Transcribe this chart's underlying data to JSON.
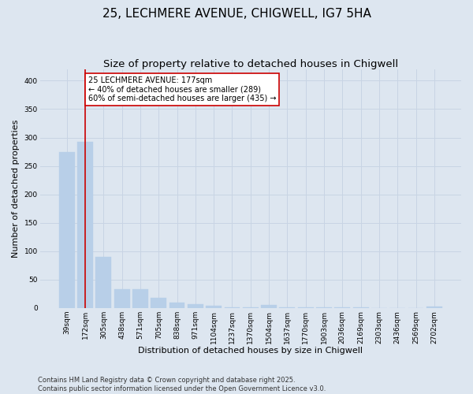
{
  "title_line1": "25, LECHMERE AVENUE, CHIGWELL, IG7 5HA",
  "title_line2": "Size of property relative to detached houses in Chigwell",
  "xlabel": "Distribution of detached houses by size in Chigwell",
  "ylabel": "Number of detached properties",
  "categories": [
    "39sqm",
    "172sqm",
    "305sqm",
    "438sqm",
    "571sqm",
    "705sqm",
    "838sqm",
    "971sqm",
    "1104sqm",
    "1237sqm",
    "1370sqm",
    "1504sqm",
    "1637sqm",
    "1770sqm",
    "1903sqm",
    "2036sqm",
    "2169sqm",
    "2303sqm",
    "2436sqm",
    "2569sqm",
    "2702sqm"
  ],
  "values": [
    275,
    293,
    90,
    33,
    33,
    18,
    10,
    7,
    4,
    1,
    1,
    5,
    1,
    1,
    1,
    1,
    1,
    0,
    0,
    0,
    3
  ],
  "bar_color": "#b8cfe8",
  "bar_edgecolor": "#b8cfe8",
  "vline_x": 1,
  "vline_color": "#cc0000",
  "annotation_text": "25 LECHMERE AVENUE: 177sqm\n← 40% of detached houses are smaller (289)\n60% of semi-detached houses are larger (435) →",
  "annotation_box_edgecolor": "#cc0000",
  "annotation_box_facecolor": "white",
  "grid_color": "#c8d4e4",
  "background_color": "#dde6f0",
  "ylim": [
    0,
    420
  ],
  "yticks": [
    0,
    50,
    100,
    150,
    200,
    250,
    300,
    350,
    400
  ],
  "footnote": "Contains HM Land Registry data © Crown copyright and database right 2025.\nContains public sector information licensed under the Open Government Licence v3.0.",
  "title_fontsize": 11,
  "subtitle_fontsize": 9.5,
  "tick_fontsize": 6.5,
  "ylabel_fontsize": 8,
  "xlabel_fontsize": 8,
  "footnote_fontsize": 6,
  "annotation_fontsize": 7
}
